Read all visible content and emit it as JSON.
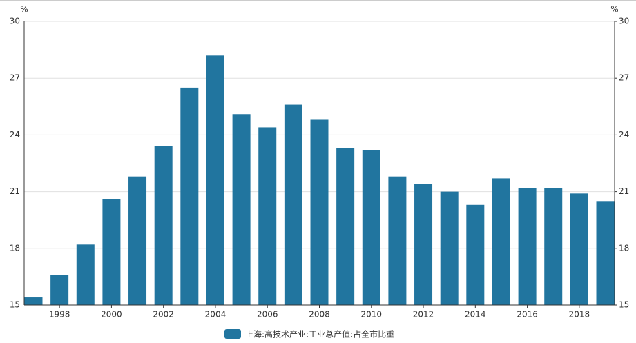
{
  "chart_data": {
    "type": "bar",
    "y_label": "%",
    "y2_label": "%",
    "categories": [
      null,
      "1998",
      null,
      "2000",
      null,
      "2002",
      null,
      "2004",
      null,
      "2006",
      null,
      "2008",
      null,
      "2010",
      null,
      "2012",
      null,
      "2014",
      null,
      "2016",
      null,
      "2018",
      null
    ],
    "series": [
      {
        "name": "上海:高技术产业:工业总产值:占全市比重",
        "color": "#21759f",
        "values": [
          15.4,
          16.6,
          18.2,
          20.6,
          21.8,
          23.4,
          26.5,
          28.2,
          25.1,
          24.4,
          25.6,
          24.8,
          23.3,
          23.2,
          21.8,
          21.4,
          21.0,
          20.3,
          21.7,
          21.2,
          21.2,
          20.9,
          20.5
        ]
      }
    ],
    "ylim": [
      15,
      30
    ],
    "yticks": [
      15,
      18,
      21,
      24,
      27,
      30
    ],
    "y2lim": [
      15,
      30
    ],
    "y2ticks": [
      15,
      18,
      21,
      24,
      27,
      30
    ],
    "grid": true,
    "legend": "bottom"
  }
}
